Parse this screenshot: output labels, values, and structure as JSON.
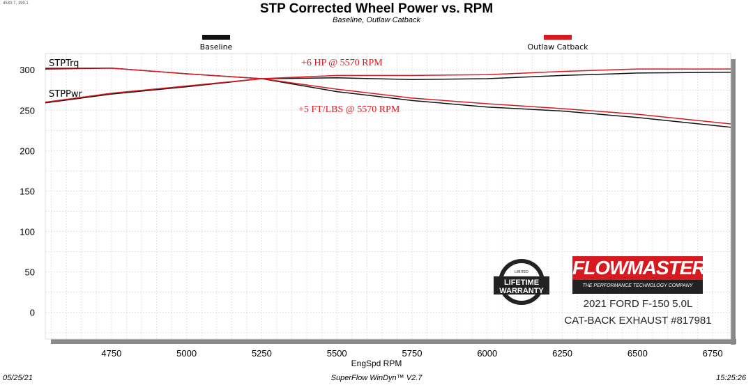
{
  "readout": "4530.7, 199.1",
  "colors": {
    "baseline": "#111111",
    "outlaw": "#d71920"
  },
  "footer": {
    "date": "05/25/21",
    "app": "SuperFlow WinDyn™  V2.7",
    "time": "15:25:26"
  },
  "logo": {
    "brand": "FLOWMASTER",
    "tagline": "THE PERFORMANCE TECHNOLOGY COMPANY",
    "warranty": "STAINLESS STEEL FLOWMASTER LIMITED LIFETIME WARRANTY"
  },
  "vehicle": {
    "line1": "2021 FORD F-150 5.0L",
    "line2": "CAT-BACK EXHAUST #817981"
  },
  "chart_data": {
    "type": "line",
    "title": "STP Corrected Wheel Power vs. RPM",
    "subtitle": "Baseline, Outlaw Catback",
    "xlabel": "EngSpd  RPM",
    "ylabel": "",
    "xlim": [
      4530,
      6810
    ],
    "ylim": [
      -33,
      320
    ],
    "xticks": [
      4750,
      5000,
      5250,
      5500,
      5750,
      6000,
      6250,
      6500,
      6750
    ],
    "yticks": [
      0,
      50,
      100,
      150,
      200,
      250,
      300
    ],
    "grid": true,
    "legend": "top",
    "curve_labels": {
      "torque": "STPTrq",
      "power": "STPPwr"
    },
    "annotations": [
      "+6 HP @ 5570 RPM",
      "+5 FT/LBS @ 5570 RPM"
    ],
    "x": [
      4530,
      4750,
      5000,
      5250,
      5500,
      5750,
      6000,
      6250,
      6500,
      6810
    ],
    "series": [
      {
        "name": "Baseline",
        "metric": "torque",
        "values": [
          301,
          302,
          295,
          289,
          273,
          262,
          254,
          249,
          241,
          229
        ]
      },
      {
        "name": "Baseline",
        "metric": "power",
        "values": [
          259,
          270,
          279,
          289,
          290,
          288,
          289,
          293,
          296,
          297
        ]
      },
      {
        "name": "Outlaw Catback",
        "metric": "torque",
        "values": [
          302,
          302,
          295,
          289,
          276,
          265,
          258,
          252,
          245,
          233
        ]
      },
      {
        "name": "Outlaw Catback",
        "metric": "power",
        "values": [
          260,
          271,
          280,
          289,
          293,
          293,
          294,
          298,
          301,
          301
        ]
      }
    ]
  }
}
